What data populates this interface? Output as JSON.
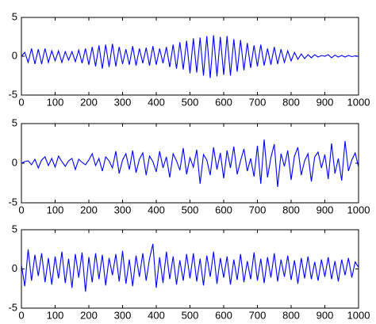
{
  "chart_data": [
    {
      "type": "line",
      "color": "#0000ff",
      "xlim": [
        0,
        1000
      ],
      "ylim": [
        -5,
        5
      ],
      "xticks": [
        0,
        100,
        200,
        300,
        400,
        500,
        600,
        700,
        800,
        900,
        1000
      ],
      "yticks": [
        -5,
        0,
        5
      ],
      "x": [
        0,
        10,
        20,
        30,
        40,
        50,
        60,
        70,
        80,
        90,
        100,
        110,
        120,
        130,
        140,
        150,
        160,
        170,
        180,
        190,
        200,
        210,
        220,
        230,
        240,
        250,
        260,
        270,
        280,
        290,
        300,
        310,
        320,
        330,
        340,
        350,
        360,
        370,
        380,
        390,
        400,
        410,
        420,
        430,
        440,
        450,
        460,
        470,
        480,
        490,
        500,
        510,
        520,
        530,
        540,
        550,
        560,
        570,
        580,
        590,
        600,
        610,
        620,
        630,
        640,
        650,
        660,
        670,
        680,
        690,
        700,
        710,
        720,
        730,
        740,
        750,
        760,
        770,
        780,
        790,
        800,
        810,
        820,
        830,
        840,
        850,
        860,
        870,
        880,
        890,
        900,
        910,
        920,
        930,
        940,
        950,
        960,
        970,
        980,
        990,
        1000
      ],
      "values": [
        0,
        0.5,
        -0.8,
        1.0,
        -1.0,
        0.9,
        -1.0,
        1.0,
        -0.8,
        0.7,
        -0.6,
        0.7,
        -0.8,
        0.6,
        -0.5,
        0.6,
        -0.7,
        0.8,
        -0.9,
        1.0,
        -1.1,
        1.2,
        -1.3,
        1.4,
        -1.6,
        1.5,
        -1.4,
        1.6,
        -1.3,
        1.2,
        -1.0,
        0.9,
        -1.1,
        1.3,
        -1.2,
        1.0,
        -0.9,
        1.1,
        -1.2,
        1.3,
        -1.1,
        1.0,
        -0.9,
        1.2,
        -1.4,
        1.5,
        -1.6,
        1.8,
        -1.7,
        2.0,
        -2.2,
        2.3,
        -2.1,
        2.4,
        -2.5,
        2.6,
        -2.8,
        2.7,
        -2.6,
        2.5,
        -2.4,
        2.6,
        -2.5,
        2.2,
        -2.0,
        2.1,
        -1.8,
        1.7,
        -1.5,
        1.4,
        -1.3,
        1.5,
        -1.2,
        1.0,
        -1.1,
        1.2,
        -1.0,
        0.9,
        -0.8,
        0.7,
        -0.6,
        0.5,
        -0.4,
        0.3,
        -0.3,
        0.2,
        -0.2,
        0.2,
        -0.1,
        0.1,
        0,
        0.2,
        -0.2,
        0.15,
        -0.1,
        0.1,
        -0.1,
        0.1,
        -0.05,
        0.05,
        0
      ]
    },
    {
      "type": "line",
      "color": "#0000ff",
      "xlim": [
        0,
        1000
      ],
      "ylim": [
        -5,
        5
      ],
      "xticks": [
        0,
        100,
        200,
        300,
        400,
        500,
        600,
        700,
        800,
        900,
        1000
      ],
      "yticks": [
        -5,
        0,
        5
      ],
      "x": [
        0,
        10,
        20,
        30,
        40,
        50,
        60,
        70,
        80,
        90,
        100,
        110,
        120,
        130,
        140,
        150,
        160,
        170,
        180,
        190,
        200,
        210,
        220,
        230,
        240,
        250,
        260,
        270,
        280,
        290,
        300,
        310,
        320,
        330,
        340,
        350,
        360,
        370,
        380,
        390,
        400,
        410,
        420,
        430,
        440,
        450,
        460,
        470,
        480,
        490,
        500,
        510,
        520,
        530,
        540,
        550,
        560,
        570,
        580,
        590,
        600,
        610,
        620,
        630,
        640,
        650,
        660,
        670,
        680,
        690,
        700,
        710,
        720,
        730,
        740,
        750,
        760,
        770,
        780,
        790,
        800,
        810,
        820,
        830,
        840,
        850,
        860,
        870,
        880,
        890,
        900,
        910,
        920,
        930,
        940,
        950,
        960,
        970,
        980,
        990,
        1000
      ],
      "values": [
        0,
        0.2,
        0.3,
        -0.2,
        0.5,
        -0.6,
        0.4,
        0.8,
        -0.3,
        0.6,
        -0.5,
        0.9,
        0.2,
        -0.4,
        0.3,
        0.6,
        -0.8,
        0.5,
        0.1,
        -0.2,
        0.4,
        1.2,
        -0.3,
        0.6,
        -1.0,
        0.8,
        0.3,
        -0.6,
        1.5,
        -1.3,
        0.4,
        1.2,
        -0.8,
        1.6,
        -1.2,
        0.5,
        1.3,
        -1.5,
        0.9,
        0.2,
        -1.1,
        1.5,
        -0.6,
        0.8,
        -1.8,
        1.2,
        0.3,
        -0.9,
        1.9,
        -1.4,
        0.7,
        -0.5,
        1.7,
        -2.6,
        1.1,
        0.4,
        -1.5,
        2.0,
        -0.8,
        1.3,
        -1.9,
        1.6,
        -0.6,
        2.1,
        -1.4,
        0.3,
        1.8,
        -1.0,
        0.6,
        -1.7,
        2.2,
        -2.6,
        3.0,
        -1.8,
        0.7,
        2.4,
        -3.0,
        1.2,
        -0.4,
        1.6,
        -2.1,
        0.9,
        2.0,
        -1.5,
        0.3,
        1.2,
        -2.3,
        0.8,
        1.4,
        -0.6,
        1.1,
        -2.0,
        2.5,
        -1.3,
        0.6,
        -2.2,
        2.8,
        -1.0,
        0.4,
        1.3,
        -0.5
      ]
    },
    {
      "type": "line",
      "color": "#0000ff",
      "xlim": [
        0,
        1000
      ],
      "ylim": [
        -5,
        5
      ],
      "xticks": [
        0,
        100,
        200,
        300,
        400,
        500,
        600,
        700,
        800,
        900,
        1000
      ],
      "yticks": [
        -5,
        0,
        5
      ],
      "x": [
        0,
        10,
        20,
        30,
        40,
        50,
        60,
        70,
        80,
        90,
        100,
        110,
        120,
        130,
        140,
        150,
        160,
        170,
        180,
        190,
        200,
        210,
        220,
        230,
        240,
        250,
        260,
        270,
        280,
        290,
        300,
        310,
        320,
        330,
        340,
        350,
        360,
        370,
        380,
        390,
        400,
        410,
        420,
        430,
        440,
        450,
        460,
        470,
        480,
        490,
        500,
        510,
        520,
        530,
        540,
        550,
        560,
        570,
        580,
        590,
        600,
        610,
        620,
        630,
        640,
        650,
        660,
        670,
        680,
        690,
        700,
        710,
        720,
        730,
        740,
        750,
        760,
        770,
        780,
        790,
        800,
        810,
        820,
        830,
        840,
        850,
        860,
        870,
        880,
        890,
        900,
        910,
        920,
        930,
        940,
        950,
        960,
        970,
        980,
        990,
        1000
      ],
      "values": [
        0.5,
        -2.2,
        2.5,
        -1.5,
        1.8,
        -0.9,
        2.0,
        -1.7,
        1.4,
        -2.0,
        1.6,
        -1.2,
        2.2,
        -1.8,
        1.3,
        -2.4,
        1.9,
        -1.1,
        2.1,
        -2.9,
        1.5,
        -1.7,
        2.0,
        -1.3,
        1.8,
        -2.1,
        1.4,
        -0.8,
        1.9,
        -1.6,
        2.3,
        -1.9,
        1.2,
        -2.2,
        1.7,
        -1.0,
        2.0,
        -1.5,
        1.3,
        3.2,
        -2.4,
        1.5,
        -1.8,
        2.2,
        -1.3,
        1.6,
        -2.0,
        1.1,
        -1.5,
        1.9,
        -1.2,
        2.0,
        -1.6,
        1.3,
        -2.1,
        1.7,
        -1.0,
        2.2,
        -1.9,
        1.4,
        -1.1,
        1.6,
        -2.0,
        1.2,
        -1.4,
        1.9,
        -1.7,
        1.0,
        -1.3,
        2.1,
        -1.5,
        1.3,
        -1.8,
        1.5,
        -1.1,
        2.0,
        -1.6,
        1.2,
        -1.0,
        1.7,
        -1.4,
        1.1,
        -1.9,
        1.4,
        -1.2,
        1.6,
        -1.3,
        0.9,
        -1.5,
        1.2,
        -1.0,
        1.5,
        -1.3,
        1.0,
        -1.6,
        1.2,
        -0.8,
        1.4,
        -1.1,
        0.9,
        0.2
      ]
    }
  ]
}
